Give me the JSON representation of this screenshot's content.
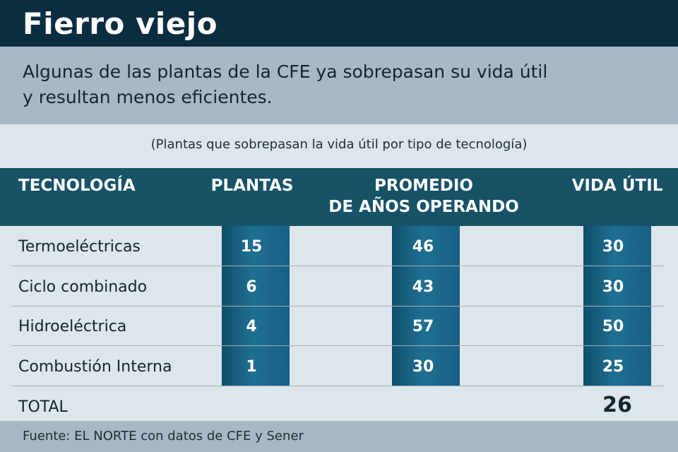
{
  "title": "Fierro viejo",
  "subtitle_line1": "Algunas de las plantas de la CFE ya sobrepasan su vida útil",
  "subtitle_line2": "y resultan menos eficientes.",
  "caption": "(Plantas que sobrepasan la vida útil por tipo de tecnología)",
  "source": "Fuente: EL NORTE con datos de CFE y Sener",
  "colors": {
    "title_bg": "#0b2d40",
    "header_bg": "#175267",
    "cell_blue": "#1f6f91"
  },
  "chart_data": {
    "type": "table",
    "columns": [
      "TECNOLOGÍA",
      "PLANTAS",
      "PROMEDIO",
      "DE AÑOS OPERANDO",
      "VIDA ÚTIL"
    ],
    "header": {
      "tecnologia": "TECNOLOGÍA",
      "plantas": "PLANTAS",
      "promedio_line1": "PROMEDIO",
      "promedio_line2": "DE AÑOS OPERANDO",
      "vida_util": "VIDA ÚTIL"
    },
    "rows": [
      {
        "tecnologia": "Termoeléctricas",
        "plantas": "15",
        "promedio": "46",
        "vida_util": "30"
      },
      {
        "tecnologia": "Ciclo combinado",
        "plantas": "6",
        "promedio": "43",
        "vida_util": "30"
      },
      {
        "tecnologia": "Hidroeléctrica",
        "plantas": "4",
        "promedio": "57",
        "vida_util": "50"
      },
      {
        "tecnologia": "Combustión Interna",
        "plantas": "1",
        "promedio": "30",
        "vida_util": "25"
      }
    ],
    "total": {
      "label": "TOTAL",
      "value": "26"
    }
  }
}
